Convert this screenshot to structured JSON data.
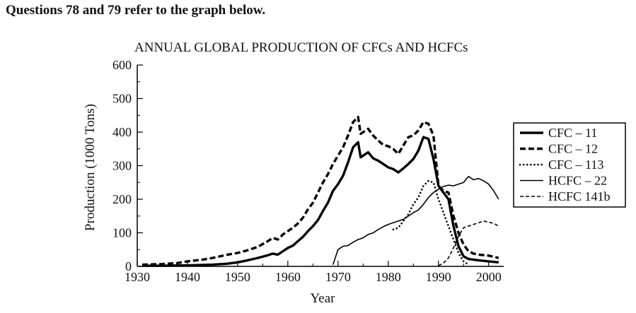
{
  "question": {
    "text": "Questions 78 and 79 refer to the graph below."
  },
  "chart_data": {
    "type": "line",
    "title": "ANNUAL GLOBAL PRODUCTION OF CFCs AND HCFCs",
    "xlabel": "Year",
    "ylabel": "Production (1000 Tons)",
    "xlim": [
      1930,
      2003
    ],
    "ylim": [
      0,
      600
    ],
    "xticks": [
      1930,
      1940,
      1950,
      1960,
      1970,
      1980,
      1990,
      2000
    ],
    "yticks": [
      0,
      100,
      200,
      300,
      400,
      500,
      600
    ],
    "legend_position": "right",
    "series": [
      {
        "name": "CFC – 11",
        "style": "thick-solid",
        "color": "#000000",
        "points": [
          [
            1931,
            2
          ],
          [
            1935,
            2
          ],
          [
            1940,
            3
          ],
          [
            1945,
            5
          ],
          [
            1948,
            8
          ],
          [
            1950,
            12
          ],
          [
            1952,
            18
          ],
          [
            1954,
            25
          ],
          [
            1956,
            33
          ],
          [
            1957,
            38
          ],
          [
            1958,
            35
          ],
          [
            1959,
            45
          ],
          [
            1960,
            55
          ],
          [
            1961,
            62
          ],
          [
            1962,
            75
          ],
          [
            1963,
            88
          ],
          [
            1964,
            105
          ],
          [
            1965,
            120
          ],
          [
            1966,
            138
          ],
          [
            1967,
            165
          ],
          [
            1968,
            190
          ],
          [
            1969,
            225
          ],
          [
            1970,
            245
          ],
          [
            1971,
            270
          ],
          [
            1972,
            310
          ],
          [
            1973,
            355
          ],
          [
            1974,
            370
          ],
          [
            1974.5,
            325
          ],
          [
            1975,
            330
          ],
          [
            1976,
            340
          ],
          [
            1977,
            322
          ],
          [
            1978,
            315
          ],
          [
            1979,
            305
          ],
          [
            1980,
            295
          ],
          [
            1981,
            290
          ],
          [
            1982,
            280
          ],
          [
            1983,
            292
          ],
          [
            1984,
            305
          ],
          [
            1985,
            320
          ],
          [
            1986,
            345
          ],
          [
            1987,
            385
          ],
          [
            1988,
            380
          ],
          [
            1989,
            320
          ],
          [
            1990,
            240
          ],
          [
            1991,
            220
          ],
          [
            1992,
            200
          ],
          [
            1993,
            120
          ],
          [
            1994,
            60
          ],
          [
            1995,
            30
          ],
          [
            1996,
            22
          ],
          [
            1998,
            18
          ],
          [
            2000,
            15
          ],
          [
            2002,
            12
          ]
        ]
      },
      {
        "name": "CFC – 12",
        "style": "thick-dashed",
        "color": "#000000",
        "points": [
          [
            1931,
            5
          ],
          [
            1935,
            7
          ],
          [
            1938,
            10
          ],
          [
            1940,
            15
          ],
          [
            1943,
            20
          ],
          [
            1945,
            25
          ],
          [
            1948,
            35
          ],
          [
            1950,
            40
          ],
          [
            1952,
            48
          ],
          [
            1954,
            58
          ],
          [
            1956,
            75
          ],
          [
            1957,
            85
          ],
          [
            1958,
            80
          ],
          [
            1959,
            95
          ],
          [
            1960,
            105
          ],
          [
            1961,
            115
          ],
          [
            1962,
            128
          ],
          [
            1963,
            145
          ],
          [
            1964,
            170
          ],
          [
            1965,
            190
          ],
          [
            1966,
            220
          ],
          [
            1967,
            250
          ],
          [
            1968,
            275
          ],
          [
            1969,
            305
          ],
          [
            1970,
            330
          ],
          [
            1971,
            355
          ],
          [
            1972,
            390
          ],
          [
            1973,
            430
          ],
          [
            1974,
            445
          ],
          [
            1974.5,
            395
          ],
          [
            1975,
            400
          ],
          [
            1976,
            410
          ],
          [
            1977,
            390
          ],
          [
            1978,
            375
          ],
          [
            1979,
            362
          ],
          [
            1980,
            358
          ],
          [
            1981,
            350
          ],
          [
            1982,
            335
          ],
          [
            1983,
            360
          ],
          [
            1984,
            385
          ],
          [
            1985,
            390
          ],
          [
            1986,
            405
          ],
          [
            1987,
            430
          ],
          [
            1988,
            425
          ],
          [
            1989,
            390
          ],
          [
            1990,
            240
          ],
          [
            1991,
            225
          ],
          [
            1992,
            220
          ],
          [
            1993,
            150
          ],
          [
            1994,
            100
          ],
          [
            1995,
            65
          ],
          [
            1996,
            45
          ],
          [
            1997,
            38
          ],
          [
            1998,
            35
          ],
          [
            2000,
            32
          ],
          [
            2002,
            25
          ]
        ]
      },
      {
        "name": "CFC – 113",
        "style": "dotted",
        "color": "#000000",
        "points": [
          [
            1981,
            110
          ],
          [
            1982,
            115
          ],
          [
            1983,
            135
          ],
          [
            1984,
            155
          ],
          [
            1985,
            185
          ],
          [
            1986,
            205
          ],
          [
            1987,
            240
          ],
          [
            1988,
            255
          ],
          [
            1989,
            250
          ],
          [
            1990,
            200
          ],
          [
            1991,
            160
          ],
          [
            1992,
            120
          ],
          [
            1993,
            80
          ],
          [
            1994,
            40
          ],
          [
            1995,
            15
          ],
          [
            1996,
            5
          ]
        ]
      },
      {
        "name": "HCFC – 22",
        "style": "thin-solid",
        "color": "#000000",
        "points": [
          [
            1969,
            5
          ],
          [
            1970,
            50
          ],
          [
            1971,
            60
          ],
          [
            1972,
            62
          ],
          [
            1973,
            72
          ],
          [
            1974,
            80
          ],
          [
            1975,
            85
          ],
          [
            1976,
            95
          ],
          [
            1977,
            100
          ],
          [
            1978,
            110
          ],
          [
            1979,
            118
          ],
          [
            1980,
            125
          ],
          [
            1981,
            130
          ],
          [
            1982,
            135
          ],
          [
            1983,
            140
          ],
          [
            1984,
            150
          ],
          [
            1985,
            160
          ],
          [
            1986,
            168
          ],
          [
            1987,
            185
          ],
          [
            1988,
            205
          ],
          [
            1989,
            220
          ],
          [
            1990,
            230
          ],
          [
            1991,
            238
          ],
          [
            1992,
            242
          ],
          [
            1993,
            240
          ],
          [
            1994,
            245
          ],
          [
            1995,
            250
          ],
          [
            1996,
            268
          ],
          [
            1997,
            258
          ],
          [
            1998,
            262
          ],
          [
            1999,
            255
          ],
          [
            2000,
            245
          ],
          [
            2001,
            225
          ],
          [
            2002,
            200
          ]
        ]
      },
      {
        "name": "HCFC 141b",
        "style": "thin-dashed",
        "color": "#000000",
        "points": [
          [
            1990,
            2
          ],
          [
            1991,
            10
          ],
          [
            1992,
            25
          ],
          [
            1993,
            55
          ],
          [
            1994,
            90
          ],
          [
            1995,
            115
          ],
          [
            1996,
            120
          ],
          [
            1997,
            125
          ],
          [
            1998,
            130
          ],
          [
            1999,
            135
          ],
          [
            2000,
            132
          ],
          [
            2001,
            128
          ],
          [
            2002,
            120
          ]
        ]
      }
    ]
  }
}
